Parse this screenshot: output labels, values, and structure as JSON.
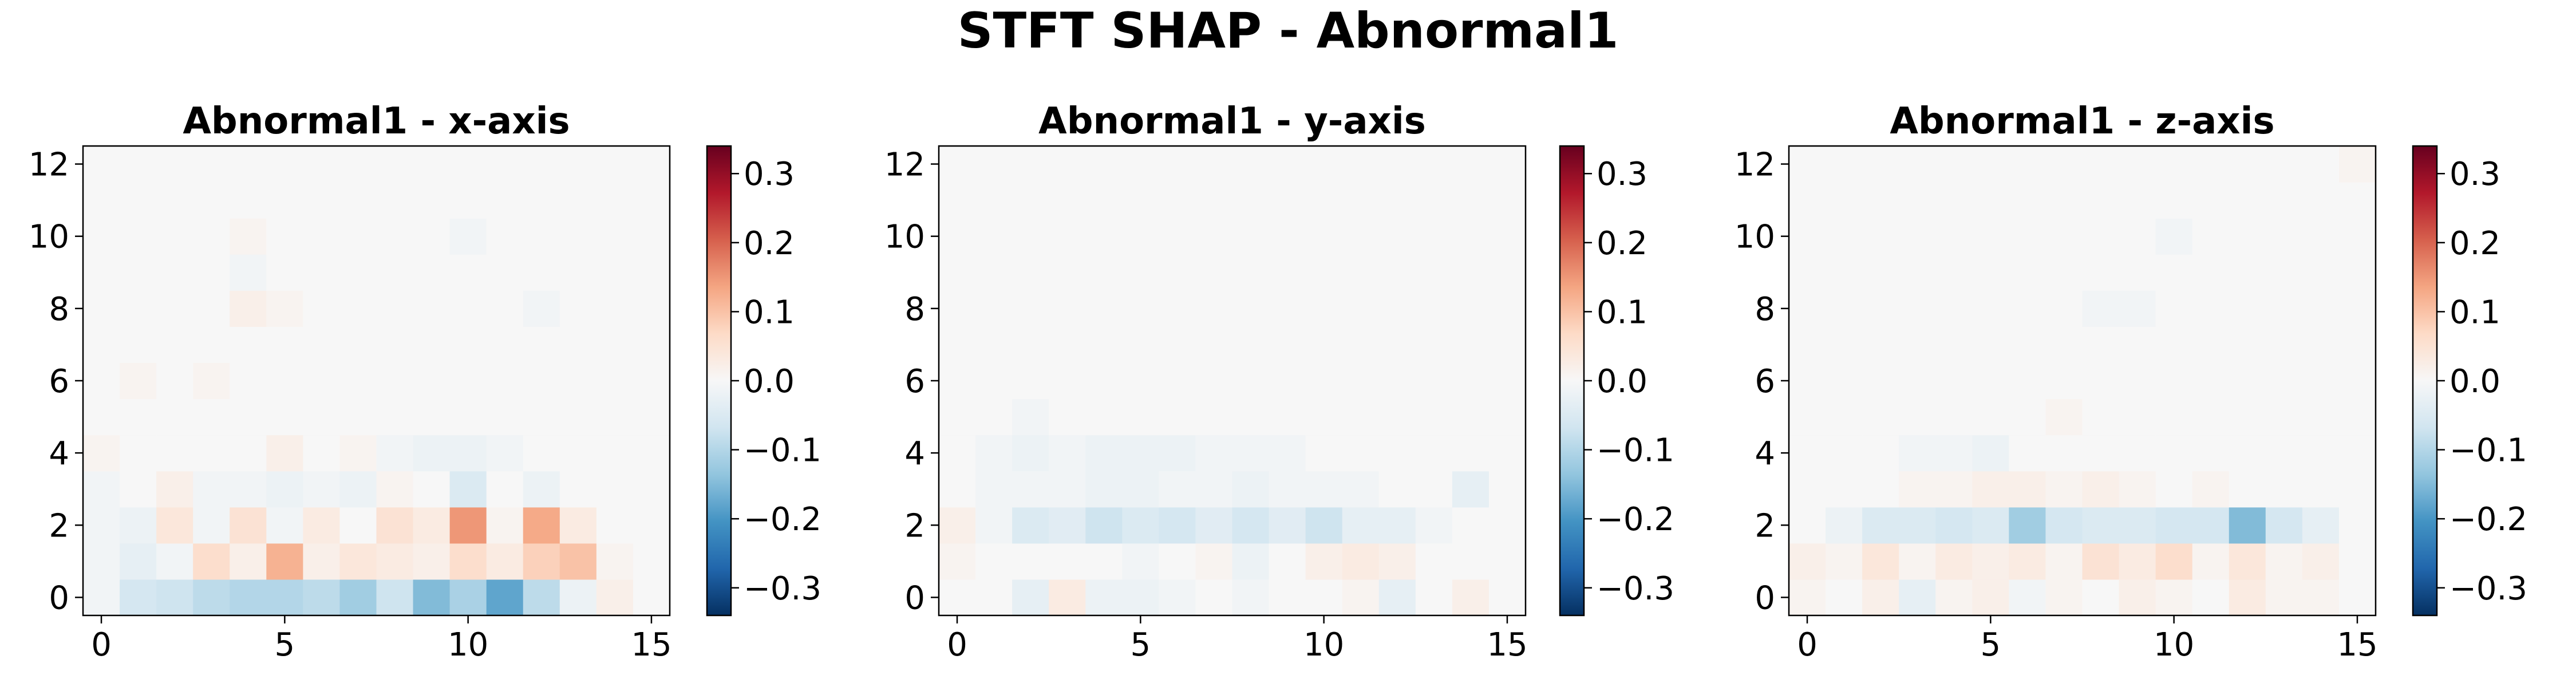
{
  "figure": {
    "suptitle": "STFT SHAP - Abnormal1"
  },
  "chart_data": [
    {
      "type": "heatmap",
      "title": "Abnormal1 - x-axis",
      "x_range": [
        0,
        15
      ],
      "y_range": [
        0,
        12
      ],
      "x_ticks": [
        0,
        5,
        10,
        15
      ],
      "y_ticks": [
        0,
        2,
        4,
        6,
        8,
        10,
        12
      ],
      "colormap": "RdBu_r",
      "color_range": [
        -0.34,
        0.34
      ],
      "colorbar_ticks": [
        0.3,
        0.2,
        0.1,
        0.0,
        -0.1,
        -0.2,
        -0.3
      ],
      "colorbar_tick_labels": [
        "0.3",
        "0.2",
        "0.1",
        "0.0",
        "−0.1",
        "−0.2",
        "−0.3"
      ],
      "rows_bottom_to_top": [
        [
          -0.01,
          -0.06,
          -0.07,
          -0.09,
          -0.1,
          -0.1,
          -0.09,
          -0.12,
          -0.07,
          -0.15,
          -0.11,
          -0.18,
          -0.09,
          -0.02,
          0.02,
          0.0
        ],
        [
          -0.01,
          -0.03,
          -0.01,
          0.06,
          0.02,
          0.12,
          0.02,
          0.04,
          0.03,
          0.02,
          0.06,
          0.03,
          0.08,
          0.1,
          0.01,
          0.0
        ],
        [
          -0.01,
          -0.02,
          0.04,
          -0.01,
          0.05,
          -0.01,
          0.03,
          0.0,
          0.05,
          0.03,
          0.15,
          0.01,
          0.13,
          0.03,
          0.0,
          0.0
        ],
        [
          -0.01,
          0.0,
          0.02,
          -0.01,
          -0.01,
          -0.02,
          -0.01,
          -0.02,
          0.01,
          0.0,
          -0.05,
          0.0,
          -0.02,
          0.0,
          0.0,
          0.0
        ],
        [
          0.01,
          0.0,
          0.0,
          0.0,
          0.0,
          0.02,
          0.0,
          0.01,
          -0.01,
          -0.02,
          -0.02,
          -0.01,
          0.0,
          0.0,
          0.0,
          0.0
        ],
        [
          0.0,
          0.0,
          0.0,
          0.0,
          0.0,
          0.0,
          0.0,
          0.0,
          0.0,
          0.0,
          0.0,
          0.0,
          0.0,
          0.0,
          0.0,
          0.0
        ],
        [
          0.0,
          0.01,
          0.0,
          0.01,
          0.0,
          0.0,
          0.0,
          0.0,
          0.0,
          0.0,
          0.0,
          0.0,
          0.0,
          0.0,
          0.0,
          0.0
        ],
        [
          0.0,
          0.0,
          0.0,
          0.0,
          0.0,
          0.0,
          0.0,
          0.0,
          0.0,
          0.0,
          0.0,
          0.0,
          0.0,
          0.0,
          0.0,
          0.0
        ],
        [
          0.0,
          0.0,
          0.0,
          0.0,
          0.02,
          0.01,
          0.0,
          0.0,
          0.0,
          0.0,
          0.0,
          0.0,
          -0.01,
          0.0,
          0.0,
          0.0
        ],
        [
          0.0,
          0.0,
          0.0,
          0.0,
          -0.01,
          0.0,
          0.0,
          0.0,
          0.0,
          0.0,
          0.0,
          0.0,
          0.0,
          0.0,
          0.0,
          0.0
        ],
        [
          0.0,
          0.0,
          0.0,
          0.0,
          0.01,
          0.0,
          0.0,
          0.0,
          0.0,
          0.0,
          -0.01,
          0.0,
          0.0,
          0.0,
          0.0,
          0.0
        ],
        [
          0.0,
          0.0,
          0.0,
          0.0,
          0.0,
          0.0,
          0.0,
          0.0,
          0.0,
          0.0,
          0.0,
          0.0,
          0.0,
          0.0,
          0.0,
          0.0
        ],
        [
          0.0,
          0.0,
          0.0,
          0.0,
          0.0,
          0.0,
          0.0,
          0.0,
          0.0,
          0.0,
          0.0,
          0.0,
          0.0,
          0.0,
          0.0,
          0.0
        ]
      ]
    },
    {
      "type": "heatmap",
      "title": "Abnormal1 - y-axis",
      "x_range": [
        0,
        15
      ],
      "y_range": [
        0,
        12
      ],
      "x_ticks": [
        0,
        5,
        10,
        15
      ],
      "y_ticks": [
        0,
        2,
        4,
        6,
        8,
        10,
        12
      ],
      "colormap": "RdBu_r",
      "color_range": [
        -0.34,
        0.34
      ],
      "colorbar_ticks": [
        0.3,
        0.2,
        0.1,
        0.0,
        -0.1,
        -0.2,
        -0.3
      ],
      "colorbar_tick_labels": [
        "0.3",
        "0.2",
        "0.1",
        "0.0",
        "−0.1",
        "−0.2",
        "−0.3"
      ],
      "rows_bottom_to_top": [
        [
          0.0,
          0.0,
          -0.03,
          0.03,
          -0.02,
          -0.02,
          -0.01,
          0.0,
          -0.01,
          0.0,
          0.0,
          0.01,
          -0.03,
          0.0,
          0.02,
          0.0
        ],
        [
          0.01,
          0.0,
          0.0,
          0.0,
          0.0,
          -0.01,
          0.0,
          0.01,
          -0.02,
          0.0,
          0.02,
          0.03,
          0.02,
          0.0,
          0.0,
          0.0
        ],
        [
          0.02,
          -0.01,
          -0.05,
          -0.04,
          -0.07,
          -0.05,
          -0.06,
          -0.04,
          -0.06,
          -0.04,
          -0.07,
          -0.03,
          -0.03,
          -0.01,
          0.0,
          0.0
        ],
        [
          0.0,
          -0.01,
          -0.01,
          -0.01,
          -0.02,
          -0.02,
          -0.01,
          -0.01,
          -0.02,
          -0.01,
          -0.01,
          -0.01,
          0.0,
          0.0,
          -0.03,
          0.0
        ],
        [
          0.0,
          -0.01,
          -0.02,
          -0.01,
          -0.02,
          -0.02,
          -0.02,
          -0.01,
          -0.01,
          -0.01,
          0.0,
          0.0,
          0.0,
          0.0,
          0.0,
          0.0
        ],
        [
          0.0,
          0.0,
          -0.01,
          0.0,
          0.0,
          0.0,
          0.0,
          0.0,
          0.0,
          0.0,
          0.0,
          0.0,
          0.0,
          0.0,
          0.0,
          0.0
        ],
        [
          0.0,
          0.0,
          0.0,
          0.0,
          0.0,
          0.0,
          0.0,
          0.0,
          0.0,
          0.0,
          0.0,
          0.0,
          0.0,
          0.0,
          0.0,
          0.0
        ],
        [
          0.0,
          0.0,
          0.0,
          0.0,
          0.0,
          0.0,
          0.0,
          0.0,
          0.0,
          0.0,
          0.0,
          0.0,
          0.0,
          0.0,
          0.0,
          0.0
        ],
        [
          0.0,
          0.0,
          0.0,
          0.0,
          0.0,
          0.0,
          0.0,
          0.0,
          0.0,
          0.0,
          0.0,
          0.0,
          0.0,
          0.0,
          0.0,
          0.0
        ],
        [
          0.0,
          0.0,
          0.0,
          0.0,
          0.0,
          0.0,
          0.0,
          0.0,
          0.0,
          0.0,
          0.0,
          0.0,
          0.0,
          0.0,
          0.0,
          0.0
        ],
        [
          0.0,
          0.0,
          0.0,
          0.0,
          0.0,
          0.0,
          0.0,
          0.0,
          0.0,
          0.0,
          0.0,
          0.0,
          0.0,
          0.0,
          0.0,
          0.0
        ],
        [
          0.0,
          0.0,
          0.0,
          0.0,
          0.0,
          0.0,
          0.0,
          0.0,
          0.0,
          0.0,
          0.0,
          0.0,
          0.0,
          0.0,
          0.0,
          0.0
        ],
        [
          0.0,
          0.0,
          0.0,
          0.0,
          0.0,
          0.0,
          0.0,
          0.0,
          0.0,
          0.0,
          0.0,
          0.0,
          0.0,
          0.0,
          0.0,
          0.0
        ]
      ]
    },
    {
      "type": "heatmap",
      "title": "Abnormal1 - z-axis",
      "x_range": [
        0,
        15
      ],
      "y_range": [
        0,
        12
      ],
      "x_ticks": [
        0,
        5,
        10,
        15
      ],
      "y_ticks": [
        0,
        2,
        4,
        6,
        8,
        10,
        12
      ],
      "colormap": "RdBu_r",
      "color_range": [
        -0.34,
        0.34
      ],
      "colorbar_ticks": [
        0.3,
        0.2,
        0.1,
        0.0,
        -0.1,
        -0.2,
        -0.3
      ],
      "colorbar_tick_labels": [
        "0.3",
        "0.2",
        "0.1",
        "0.0",
        "−0.1",
        "−0.2",
        "−0.3"
      ],
      "rows_bottom_to_top": [
        [
          0.01,
          0.0,
          0.02,
          -0.03,
          0.01,
          0.02,
          -0.01,
          0.01,
          0.0,
          0.02,
          0.01,
          0.0,
          0.03,
          0.01,
          0.01,
          0.0
        ],
        [
          0.02,
          0.01,
          0.04,
          0.01,
          0.03,
          0.02,
          0.03,
          0.01,
          0.05,
          0.03,
          0.06,
          0.01,
          0.04,
          0.01,
          0.02,
          0.0
        ],
        [
          0.0,
          -0.02,
          -0.05,
          -0.05,
          -0.06,
          -0.05,
          -0.12,
          -0.06,
          -0.05,
          -0.05,
          -0.06,
          -0.06,
          -0.15,
          -0.06,
          -0.03,
          0.0
        ],
        [
          0.0,
          0.0,
          0.0,
          0.01,
          0.01,
          0.02,
          0.02,
          0.01,
          0.02,
          0.01,
          0.0,
          0.01,
          0.0,
          0.0,
          0.0,
          0.0
        ],
        [
          0.0,
          0.0,
          0.0,
          -0.01,
          -0.01,
          -0.02,
          0.0,
          0.0,
          0.0,
          0.0,
          0.0,
          0.0,
          0.0,
          0.0,
          0.0,
          0.0
        ],
        [
          0.0,
          0.0,
          0.0,
          0.0,
          0.0,
          0.0,
          0.0,
          0.01,
          0.0,
          0.0,
          0.0,
          0.0,
          0.0,
          0.0,
          0.0,
          0.0
        ],
        [
          0.0,
          0.0,
          0.0,
          0.0,
          0.0,
          0.0,
          0.0,
          0.0,
          0.0,
          0.0,
          0.0,
          0.0,
          0.0,
          0.0,
          0.0,
          0.0
        ],
        [
          0.0,
          0.0,
          0.0,
          0.0,
          0.0,
          0.0,
          0.0,
          0.0,
          0.0,
          0.0,
          0.0,
          0.0,
          0.0,
          0.0,
          0.0,
          0.0
        ],
        [
          0.0,
          0.0,
          0.0,
          0.0,
          0.0,
          0.0,
          0.0,
          0.0,
          -0.01,
          -0.01,
          0.0,
          0.0,
          0.0,
          0.0,
          0.0,
          0.0
        ],
        [
          0.0,
          0.0,
          0.0,
          0.0,
          0.0,
          0.0,
          0.0,
          0.0,
          0.0,
          0.0,
          0.0,
          0.0,
          0.0,
          0.0,
          0.0,
          0.0
        ],
        [
          0.0,
          0.0,
          0.0,
          0.0,
          0.0,
          0.0,
          0.0,
          0.0,
          0.0,
          0.0,
          -0.01,
          0.0,
          0.0,
          0.0,
          0.0,
          0.0
        ],
        [
          0.0,
          0.0,
          0.0,
          0.0,
          0.0,
          0.0,
          0.0,
          0.0,
          0.0,
          0.0,
          0.0,
          0.0,
          0.0,
          0.0,
          0.0,
          0.0
        ],
        [
          0.0,
          0.0,
          0.0,
          0.0,
          0.0,
          0.0,
          0.0,
          0.0,
          0.0,
          0.0,
          0.0,
          0.0,
          0.0,
          0.0,
          0.0,
          0.01
        ]
      ]
    }
  ]
}
